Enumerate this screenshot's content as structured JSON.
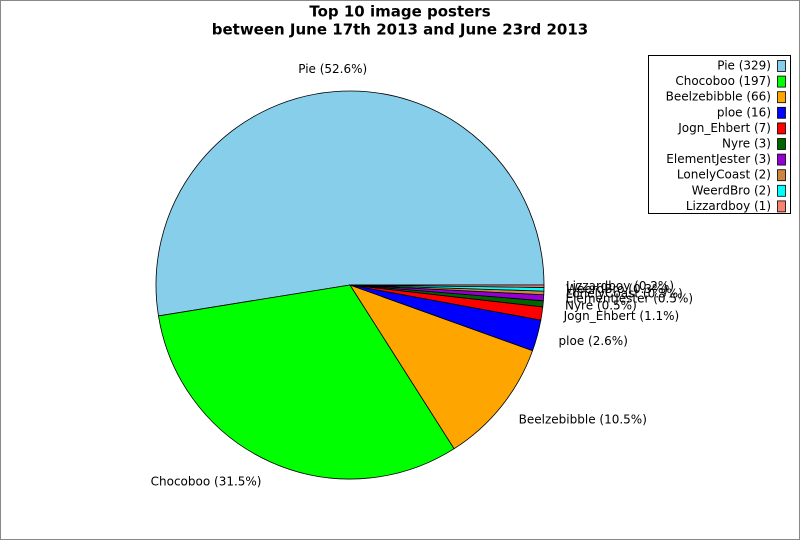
{
  "chart_data": {
    "type": "pie",
    "title": "Top 10 image posters",
    "subtitle": "between June 17th 2013 and June 23rd 2013",
    "categories": [
      "Pie (329)",
      "Chocoboo (197)",
      "Beelzebibble (66)",
      "ploe (16)",
      "Jogn_Ehbert (7)",
      "Nyre (3)",
      "ElementJester (3)",
      "LonelyCoast (2)",
      "WeerdBro (2)",
      "Lizzardboy (1)"
    ],
    "values": [
      52.6,
      31.5,
      10.5,
      2.6,
      1.1,
      0.5,
      0.5,
      0.3,
      0.3,
      0.2
    ],
    "value_labels": [
      "Pie (52.6%)",
      "Chocoboo (31.5%)",
      "Beelzebibble (10.5%)",
      "ploe (2.6%)",
      "Jogn_Ehbert (1.1%)",
      "Nyre (0.5%)",
      "ElementJester (0.5%)",
      "LonelyCoast (0.3%)",
      "WeerdBro (0.3%)",
      "Lizzardboy (0.2%)"
    ],
    "colors": [
      "#87ceeb",
      "#00ff00",
      "#ffa500",
      "#0000ff",
      "#ff0000",
      "#006400",
      "#9400d3",
      "#cd853f",
      "#00ffff",
      "#fa8072"
    ],
    "legend": "upper right"
  }
}
